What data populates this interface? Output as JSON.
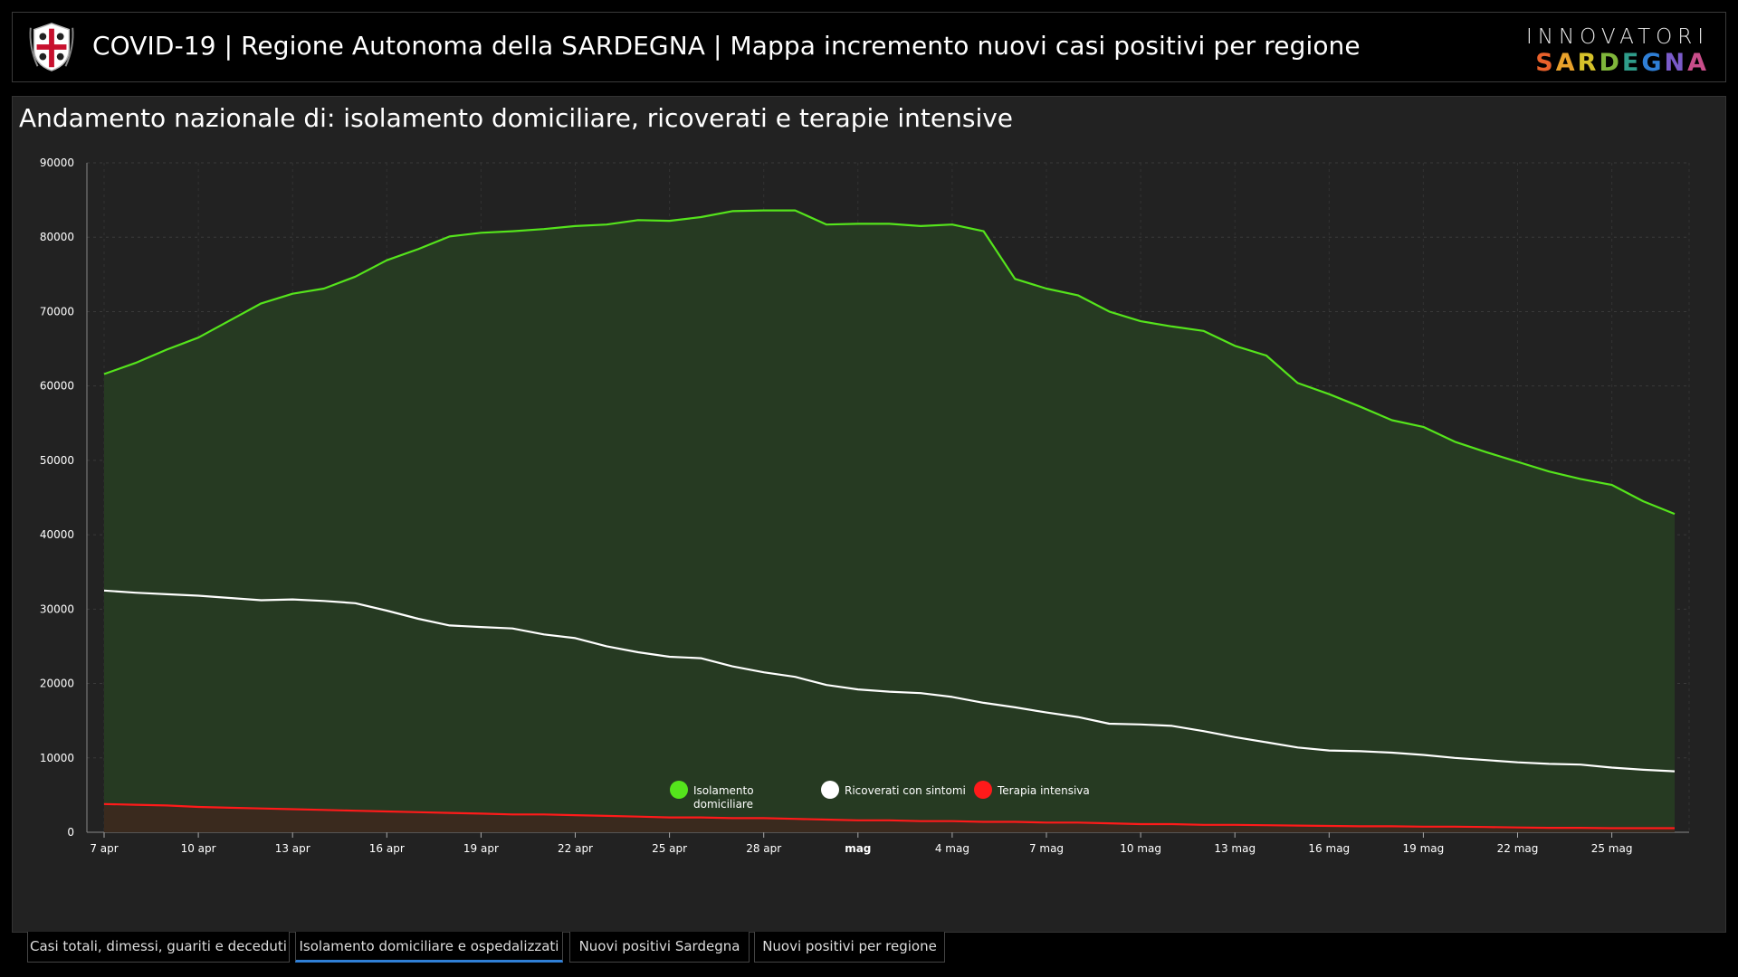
{
  "header": {
    "title": "COVID-19 | Regione Autonoma della SARDEGNA | Mappa incremento nuovi casi positivi per regione",
    "brand_top": "INNOVATORI",
    "brand_bottom": "SARDEGNA",
    "brand_bottom_colors": [
      "#e9612b",
      "#e9a22b",
      "#d6c12a",
      "#7fb53a",
      "#2f9c8a",
      "#2f7fd6",
      "#7a5bc9",
      "#c94d8a"
    ]
  },
  "panel": {
    "title": "Andamento nazionale di: isolamento domiciliare, ricoverati e terapie intensive"
  },
  "chart_data": {
    "type": "area",
    "x_tick_labels": [
      "7 apr",
      "10 apr",
      "13 apr",
      "16 apr",
      "19 apr",
      "22 apr",
      "25 apr",
      "28 apr",
      "mag",
      "4 mag",
      "7 mag",
      "10 mag",
      "13 mag",
      "16 mag",
      "19 mag",
      "22 mag",
      "25 mag"
    ],
    "ylim": [
      0,
      90000
    ],
    "y_ticks": [
      0,
      10000,
      20000,
      30000,
      40000,
      50000,
      60000,
      70000,
      80000,
      90000
    ],
    "grid": true,
    "legend_position": "bottom-center",
    "series": [
      {
        "name": "Isolamento domiciliare",
        "color": "#55e41c",
        "fill": "#263a22",
        "values": [
          61600,
          63100,
          64900,
          66500,
          68800,
          71100,
          72400,
          73100,
          74700,
          76900,
          78400,
          80100,
          80600,
          80800,
          81100,
          81500,
          81700,
          82300,
          82200,
          82700,
          83500,
          83600,
          83600,
          81700,
          81800,
          81800,
          81500,
          81700,
          80800,
          74400,
          73100,
          72200,
          70000,
          68700,
          68000,
          67400,
          65400,
          64100,
          60400,
          58900,
          57200,
          55400,
          54500,
          52500,
          51100,
          49800,
          48500,
          47500,
          46700,
          44500,
          42800
        ]
      },
      {
        "name": "Ricoverati con sintomi",
        "color": "#ffffff",
        "values": [
          32500,
          32200,
          32000,
          31800,
          31500,
          31200,
          31300,
          31100,
          30800,
          29800,
          28700,
          27800,
          27600,
          27400,
          26600,
          26100,
          25000,
          24200,
          23600,
          23400,
          22300,
          21500,
          20900,
          19800,
          19200,
          18900,
          18700,
          18200,
          17400,
          16800,
          16100,
          15500,
          14600,
          14500,
          14300,
          13600,
          12800,
          12100,
          11400,
          11000,
          10900,
          10700,
          10400,
          10000,
          9700,
          9400,
          9200,
          9100,
          8700,
          8400,
          8200
        ]
      },
      {
        "name": "Terapia intensiva",
        "color": "#ff1a1a",
        "fill": "#3a2a1e",
        "values": [
          3800,
          3700,
          3600,
          3400,
          3300,
          3200,
          3100,
          3000,
          2900,
          2800,
          2700,
          2600,
          2500,
          2400,
          2400,
          2300,
          2200,
          2100,
          2000,
          2000,
          1900,
          1900,
          1800,
          1700,
          1600,
          1600,
          1500,
          1500,
          1400,
          1400,
          1300,
          1300,
          1200,
          1100,
          1100,
          1000,
          1000,
          950,
          900,
          850,
          800,
          800,
          750,
          750,
          700,
          650,
          600,
          600,
          550,
          550,
          550
        ]
      }
    ]
  },
  "tabs": [
    {
      "label": "Casi totali, dimessi, guariti e deceduti",
      "active": false
    },
    {
      "label": "Isolamento domiciliare e ospedalizzati",
      "active": true
    },
    {
      "label": "Nuovi positivi Sardegna",
      "active": false
    },
    {
      "label": "Nuovi positivi per regione",
      "active": false
    }
  ],
  "icons": {
    "crest": "sardinia-crest-icon"
  }
}
